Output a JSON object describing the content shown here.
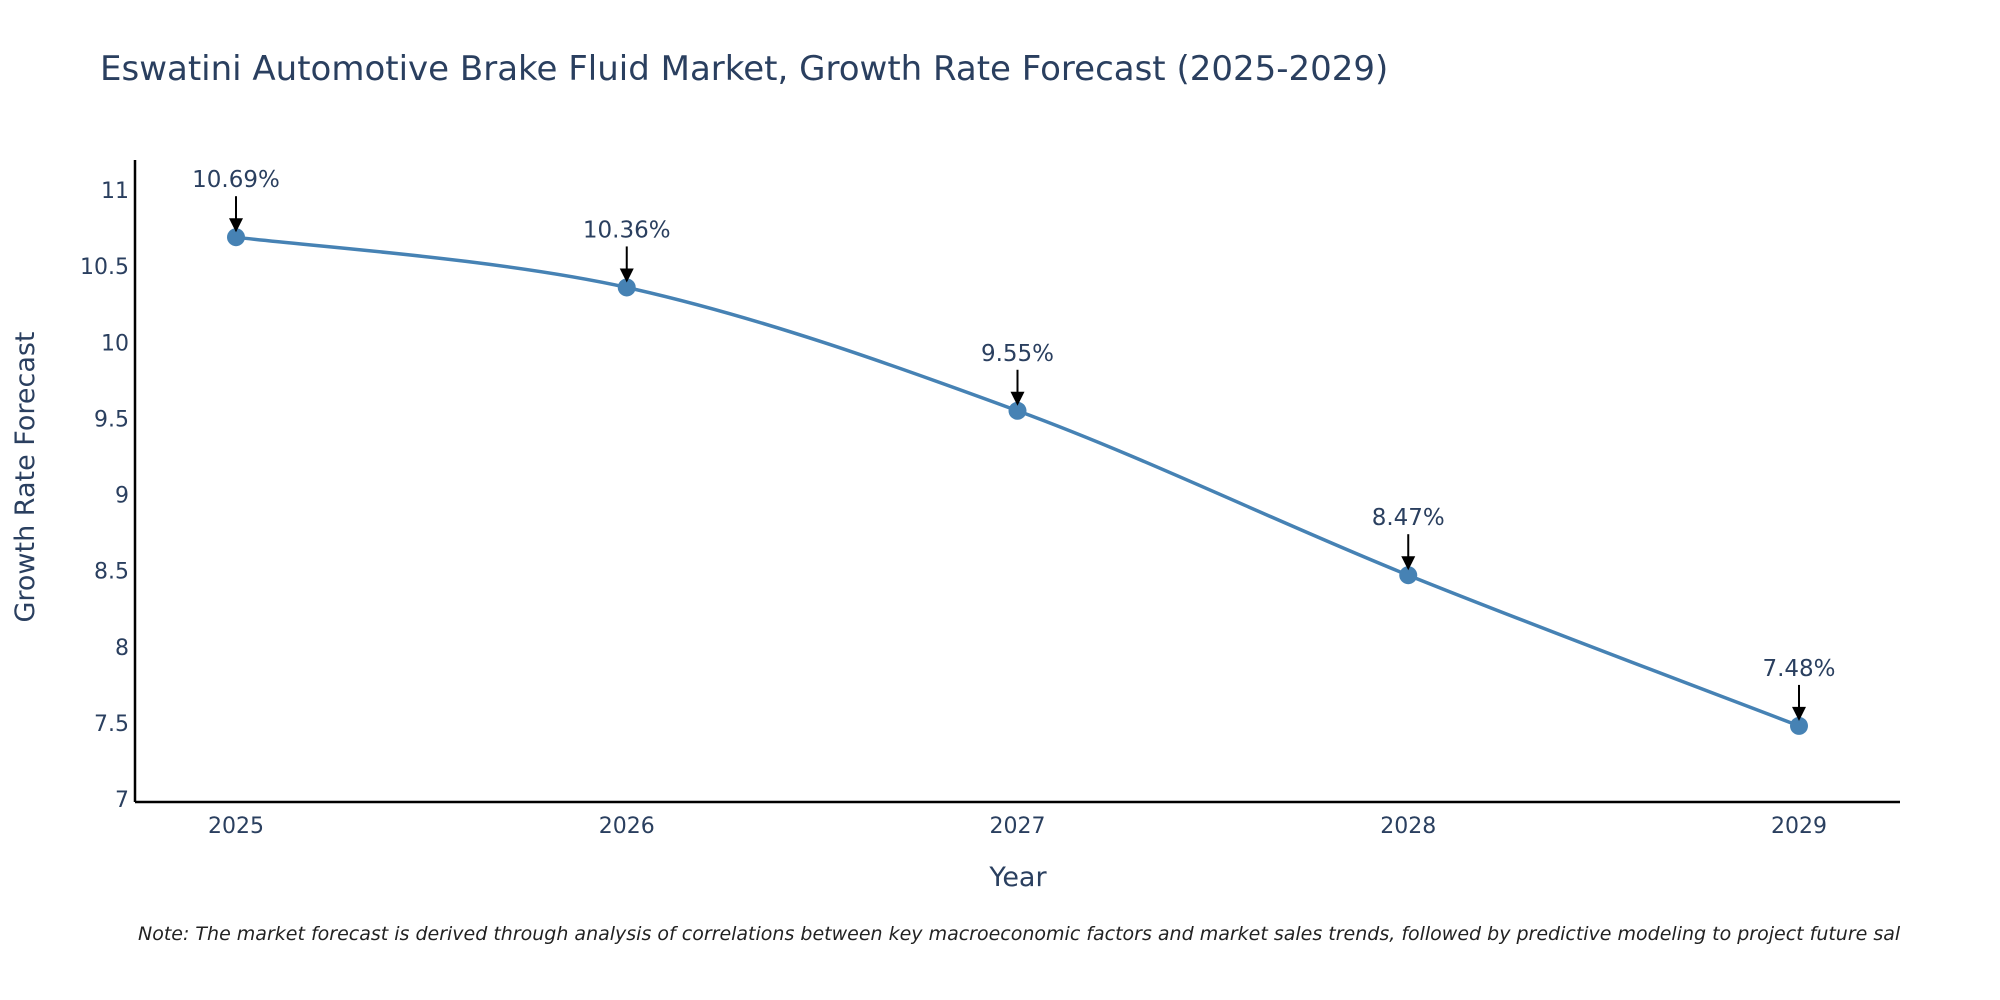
{
  "chart_data": {
    "type": "line",
    "title": "Eswatini Automotive Brake Fluid Market, Growth Rate Forecast (2025-2029)",
    "xlabel": "Year",
    "ylabel": "Growth Rate Forecast",
    "categories": [
      "2025",
      "2026",
      "2027",
      "2028",
      "2029"
    ],
    "series": [
      {
        "name": "Growth Rate Forecast",
        "values": [
          10.69,
          10.36,
          9.55,
          8.47,
          7.48
        ],
        "labels": [
          "10.69%",
          "10.36%",
          "9.55%",
          "8.47%",
          "7.48%"
        ]
      }
    ],
    "ylim": [
      7,
      11.2
    ],
    "yticks": [
      7,
      7.5,
      8,
      8.5,
      9,
      9.5,
      10,
      10.5,
      11
    ],
    "ytick_labels": [
      "7",
      "7.5",
      "8",
      "8.5",
      "9",
      "9.5",
      "10",
      "10.5",
      "11"
    ],
    "grid": false,
    "line_color": "#4682b4",
    "annotation_color": "#000000",
    "note": "Note: The market forecast is derived through analysis of correlations between key macroeconomic factors and market sales trends, followed by predictive modeling to project future sal"
  }
}
